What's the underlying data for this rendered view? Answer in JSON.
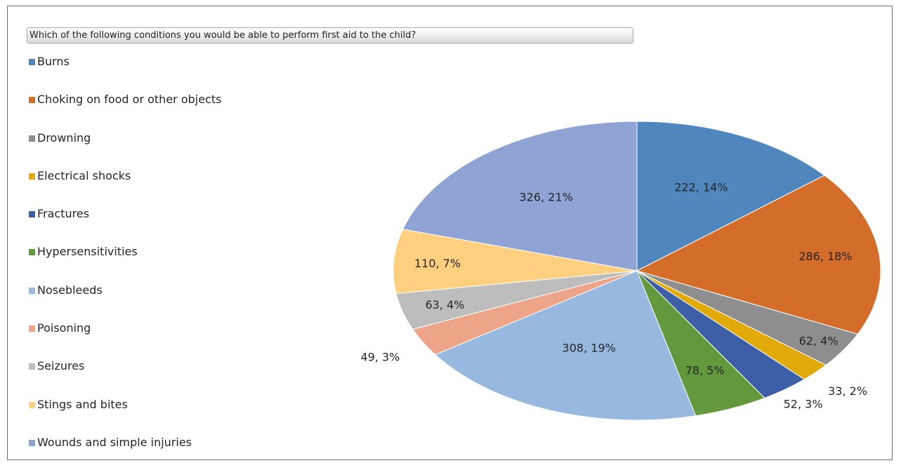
{
  "chart_data": {
    "type": "pie",
    "title": "Which of the following conditions you would be able to perform first aid to the child?",
    "categories": [
      "Burns",
      "Choking on food or other objects",
      "Drowning",
      "Electrical shocks",
      "Fractures",
      "Hypersensitivities",
      "Nosebleeds",
      "Poisoning",
      "Seizures",
      "Stings and bites",
      "Wounds and simple injuries"
    ],
    "values": [
      222,
      286,
      62,
      33,
      52,
      78,
      308,
      49,
      63,
      110,
      326
    ],
    "data_labels": [
      "222, 14%",
      "286, 18%",
      "62, 4%",
      "33, 2%",
      "52, 3%",
      "78, 5%",
      "308, 19%",
      "49, 3%",
      "63, 4%",
      "110, 7%",
      "326, 21%"
    ],
    "colors": [
      "#4f86bd",
      "#d46c2a",
      "#8e8e8e",
      "#e2aa08",
      "#3c5fa8",
      "#63993d",
      "#97b8df",
      "#eda488",
      "#bdbdbd",
      "#fecf7f",
      "#8fa3d4"
    ],
    "legend_position": "left",
    "start_angle": "12 o'clock",
    "direction": "clockwise"
  }
}
